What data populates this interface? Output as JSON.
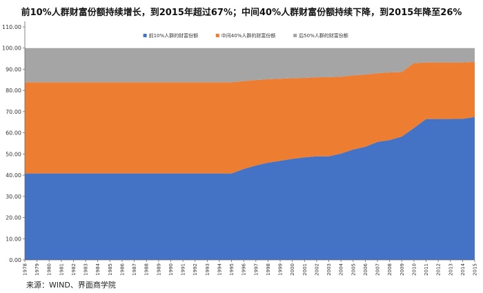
{
  "page": {
    "title": "前10%人群财富份额持续增长，到2015年超过67%；中间40%人群财富份额持续下降，到2015年降至26%",
    "source": "来源：WIND、界面商学院"
  },
  "chart_data": {
    "type": "area",
    "stacked": true,
    "title": "前10%人群财富份额持续增长，到2015年超过67%；中间40%人群财富份额持续下降，到2015年降至26%",
    "xlabel": "",
    "ylabel": "",
    "ylim": [
      0,
      110
    ],
    "yticks": [
      0,
      10,
      20,
      30,
      40,
      50,
      60,
      70,
      80,
      90,
      100,
      110
    ],
    "ytick_labels": [
      "0.00",
      "10.00",
      "20.00",
      "30.00",
      "40.00",
      "50.00",
      "60.00",
      "70.00",
      "80.00",
      "90.00",
      "100.00",
      "110.00"
    ],
    "grid": false,
    "legend_position": "top-center",
    "x": [
      "1978",
      "1979",
      "1980",
      "1981",
      "1982",
      "1983",
      "1984",
      "1985",
      "1986",
      "1987",
      "1988",
      "1989",
      "1990",
      "1991",
      "1992",
      "1993",
      "1994",
      "1995",
      "1996",
      "1997",
      "1998",
      "1999",
      "2000",
      "2001",
      "2002",
      "2003",
      "2004",
      "2005",
      "2006",
      "2007",
      "2008",
      "2009",
      "2010",
      "2011",
      "2012",
      "2013",
      "2014",
      "2015"
    ],
    "series": [
      {
        "name": "前10%人群的财富份额",
        "color": "#4472c4",
        "values": [
          40.8,
          40.8,
          40.8,
          40.8,
          40.8,
          40.8,
          40.8,
          40.8,
          40.8,
          40.8,
          40.8,
          40.8,
          40.8,
          40.8,
          40.8,
          40.8,
          40.8,
          40.8,
          42.9,
          44.6,
          45.9,
          46.8,
          47.7,
          48.4,
          48.9,
          48.9,
          50.2,
          52.1,
          53.4,
          55.7,
          56.6,
          58.2,
          62.3,
          66.5,
          66.5,
          66.5,
          66.6,
          67.4
        ]
      },
      {
        "name": "中间40%人群的财富份额",
        "color": "#ed7d31",
        "values": [
          43.1,
          43.1,
          43.1,
          43.1,
          43.1,
          43.1,
          43.1,
          43.1,
          43.1,
          43.1,
          43.1,
          43.1,
          43.1,
          43.1,
          43.1,
          43.1,
          43.1,
          43.1,
          41.5,
          40.3,
          39.4,
          38.7,
          38.1,
          37.5,
          37.3,
          37.4,
          36.3,
          35.0,
          34.1,
          32.4,
          31.9,
          30.5,
          30.6,
          26.7,
          26.7,
          26.7,
          26.6,
          26.1
        ]
      },
      {
        "name": "后50%人群的财富份额",
        "color": "#a5a5a5",
        "values": [
          16.1,
          16.1,
          16.1,
          16.1,
          16.1,
          16.1,
          16.1,
          16.1,
          16.1,
          16.1,
          16.1,
          16.1,
          16.1,
          16.1,
          16.1,
          16.1,
          16.1,
          16.1,
          15.6,
          15.1,
          14.7,
          14.5,
          14.2,
          14.1,
          13.8,
          13.7,
          13.5,
          12.9,
          12.5,
          11.9,
          11.5,
          11.3,
          7.1,
          6.8,
          6.8,
          6.8,
          6.8,
          6.5
        ]
      }
    ]
  }
}
